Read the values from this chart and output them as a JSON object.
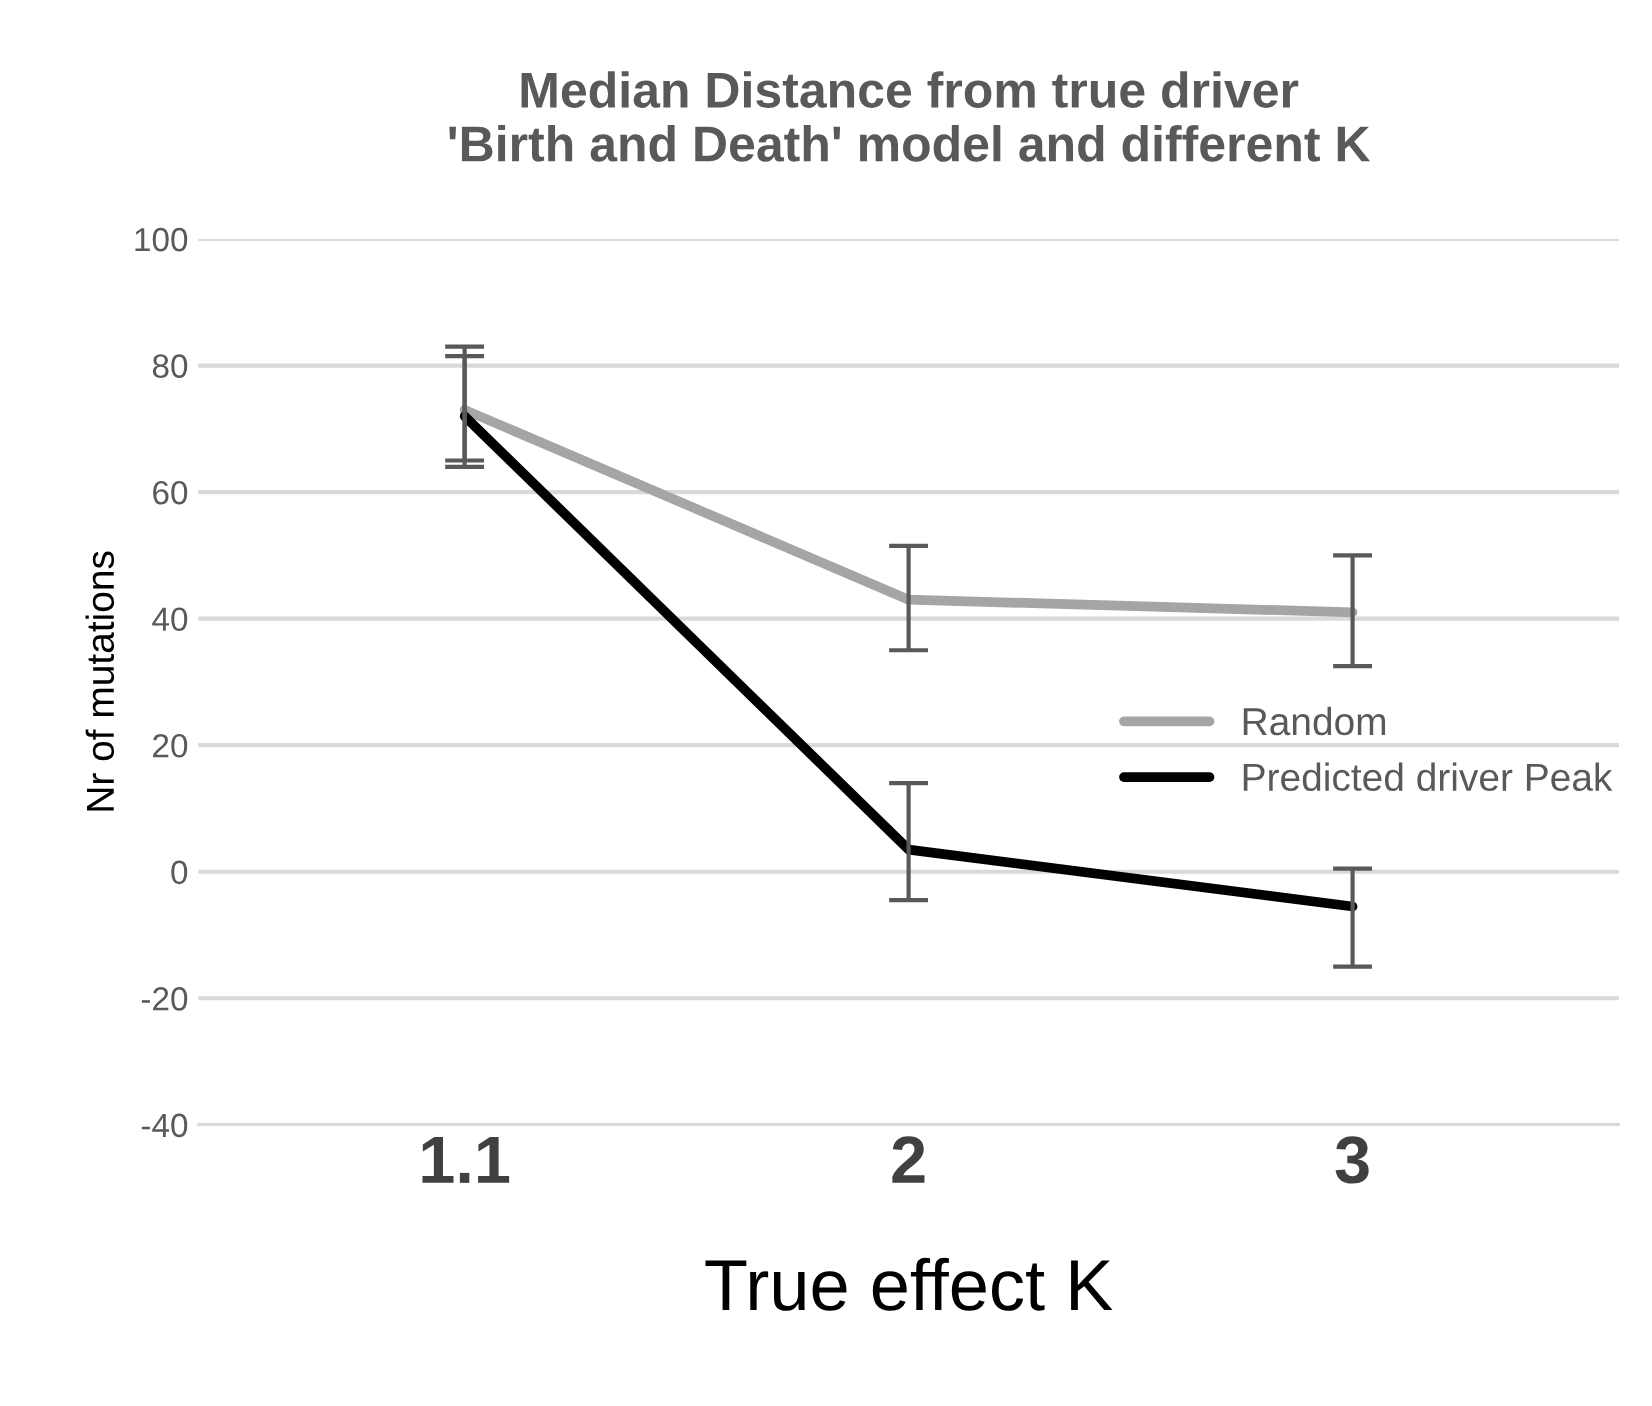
{
  "chart_data": {
    "type": "line",
    "title": "Median Distance from true driver\n'Birth and Death' model and different K",
    "xlabel": "True effect K",
    "ylabel": "Nr of mutations",
    "categories": [
      "1.1",
      "2",
      "3"
    ],
    "series": [
      {
        "name": "Random",
        "color": "#a5a5a5",
        "values": [
          73,
          43,
          41
        ],
        "errors": [
          [
            64,
            83
          ],
          [
            35,
            51.5
          ],
          [
            32.5,
            50
          ]
        ]
      },
      {
        "name": "Predicted driver Peak",
        "color": "#000000",
        "values": [
          72,
          3.5,
          -5.5
        ],
        "errors": [
          [
            65,
            81.5
          ],
          [
            -4.5,
            14
          ],
          [
            -15,
            0.5
          ]
        ]
      }
    ],
    "ylim": [
      -40,
      100
    ],
    "yticks": [
      -40,
      -20,
      0,
      20,
      40,
      60,
      80,
      100
    ],
    "grid": "y",
    "legend": "right",
    "marker": "none",
    "line_style": "solid"
  }
}
